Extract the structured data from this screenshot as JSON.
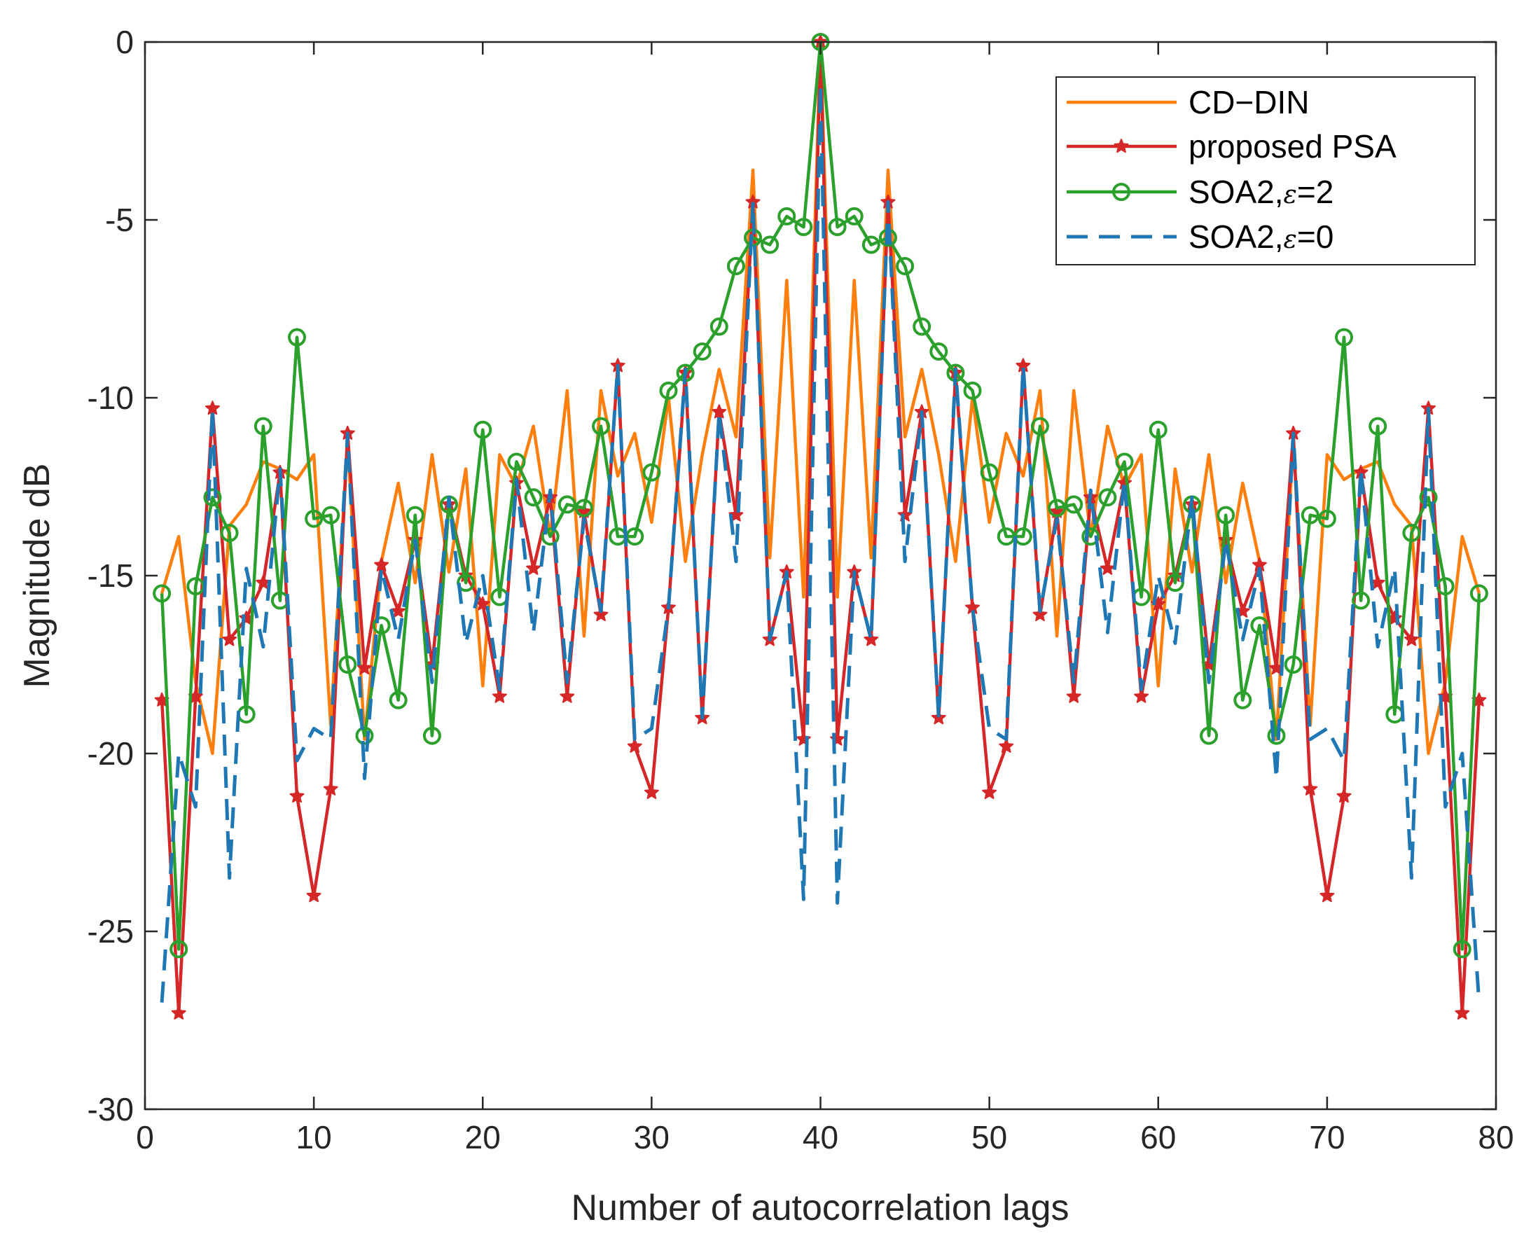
{
  "chart_data": {
    "type": "line",
    "title": "",
    "xlabel": "Number of autocorrelation lags",
    "ylabel": "Magnitude dB",
    "xlim": [
      0,
      80
    ],
    "ylim": [
      -30,
      0
    ],
    "xticks": [
      0,
      10,
      20,
      30,
      40,
      50,
      60,
      70,
      80
    ],
    "yticks": [
      0,
      -5,
      -10,
      -15,
      -20,
      -25,
      -30
    ],
    "grid": false,
    "legend_position": "top-right",
    "x": [
      1,
      2,
      3,
      4,
      5,
      6,
      7,
      8,
      9,
      10,
      11,
      12,
      13,
      14,
      15,
      16,
      17,
      18,
      19,
      20,
      21,
      22,
      23,
      24,
      25,
      26,
      27,
      28,
      29,
      30,
      31,
      32,
      33,
      34,
      35,
      36,
      37,
      38,
      39,
      40,
      41,
      42,
      43,
      44,
      45,
      46,
      47,
      48,
      49,
      50,
      51,
      52,
      53,
      54,
      55,
      56,
      57,
      58,
      59,
      60,
      61,
      62,
      63,
      64,
      65,
      66,
      67,
      68,
      69,
      70,
      71,
      72,
      73,
      74,
      75,
      76,
      77,
      78,
      79
    ],
    "series": [
      {
        "name": "CD−DIN",
        "legend_prefix": "CD−DIN",
        "legend_eps": "",
        "legend_suffix": "",
        "color": "#FF7F0E",
        "style": "solid",
        "marker": "none",
        "values": [
          -15.5,
          -13.9,
          -18.0,
          -20.0,
          -13.6,
          -13.0,
          -11.8,
          -12.0,
          -12.3,
          -11.6,
          -19.2,
          -11.2,
          -19.6,
          -14.6,
          -12.4,
          -15.2,
          -11.6,
          -14.9,
          -12.0,
          -18.1,
          -11.6,
          -12.5,
          -10.8,
          -13.9,
          -9.8,
          -16.7,
          -9.8,
          -12.2,
          -11.0,
          -13.5,
          -10.0,
          -14.6,
          -11.6,
          -9.2,
          -11.1,
          -3.6,
          -14.5,
          -6.7,
          -15.6,
          0.0,
          -15.6,
          -6.7,
          -14.5,
          -3.6,
          -11.1,
          -9.2,
          -11.6,
          -14.6,
          -10.0,
          -13.5,
          -11.0,
          -12.2,
          -9.8,
          -16.7,
          -9.8,
          -13.9,
          -10.8,
          -12.5,
          -11.6,
          -18.1,
          -12.0,
          -14.9,
          -11.6,
          -15.2,
          -12.4,
          -14.6,
          -19.6,
          -11.2,
          -19.2,
          -11.6,
          -12.3,
          -12.0,
          -11.8,
          -13.0,
          -13.6,
          -20.0,
          -18.0,
          -13.9,
          -15.5
        ]
      },
      {
        "name": "proposed PSA",
        "legend_prefix": "proposed PSA",
        "legend_eps": "",
        "legend_suffix": "",
        "color": "#D62728",
        "style": "solid",
        "marker": "star",
        "values": [
          -18.5,
          -27.3,
          -18.4,
          -10.3,
          -16.8,
          -16.2,
          -15.2,
          -12.1,
          -21.2,
          -24.0,
          -21.0,
          -11.0,
          -17.6,
          -14.7,
          -16.0,
          -14.0,
          -17.5,
          -13.0,
          -15.0,
          -15.8,
          -18.4,
          -12.4,
          -14.8,
          -12.8,
          -18.4,
          -13.2,
          -16.1,
          -9.1,
          -19.8,
          -21.1,
          -15.9,
          -9.3,
          -19.0,
          -10.4,
          -13.3,
          -4.5,
          -16.8,
          -14.9,
          -19.6,
          0.0,
          -19.6,
          -14.9,
          -16.8,
          -4.5,
          -13.3,
          -10.4,
          -19.0,
          -9.3,
          -15.9,
          -21.1,
          -19.8,
          -9.1,
          -16.1,
          -13.2,
          -18.4,
          -12.8,
          -14.8,
          -12.4,
          -18.4,
          -15.8,
          -15.0,
          -13.0,
          -17.5,
          -14.0,
          -16.0,
          -14.7,
          -17.6,
          -11.0,
          -21.0,
          -24.0,
          -21.2,
          -12.1,
          -15.2,
          -16.2,
          -16.8,
          -10.3,
          -18.4,
          -27.3,
          -18.5
        ]
      },
      {
        "name": "SOA2,ε=2",
        "legend_prefix": "SOA2,",
        "legend_eps": "ε",
        "legend_suffix": "=2",
        "color": "#2CA02C",
        "style": "solid",
        "marker": "circle",
        "values": [
          -15.5,
          -25.5,
          -15.3,
          -12.8,
          -13.8,
          -18.9,
          -10.8,
          -15.7,
          -8.3,
          -13.4,
          -13.3,
          -17.5,
          -19.5,
          -16.4,
          -18.5,
          -13.3,
          -19.5,
          -13.0,
          -15.2,
          -10.9,
          -15.6,
          -11.8,
          -12.8,
          -13.9,
          -13.0,
          -13.1,
          -10.8,
          -13.9,
          -13.9,
          -12.1,
          -9.8,
          -9.3,
          -8.7,
          -8.0,
          -6.3,
          -5.5,
          -5.7,
          -4.9,
          -5.2,
          0.0,
          -5.2,
          -4.9,
          -5.7,
          -5.5,
          -6.3,
          -8.0,
          -8.7,
          -9.3,
          -9.8,
          -12.1,
          -13.9,
          -13.9,
          -10.8,
          -13.1,
          -13.0,
          -13.9,
          -12.8,
          -11.8,
          -15.6,
          -10.9,
          -15.2,
          -13.0,
          -19.5,
          -13.3,
          -18.5,
          -16.4,
          -19.5,
          -17.5,
          -13.3,
          -13.4,
          -8.3,
          -15.7,
          -10.8,
          -18.9,
          -13.8,
          -12.8,
          -15.3,
          -25.5,
          -15.5
        ]
      },
      {
        "name": "SOA2,ε=0",
        "legend_prefix": "SOA2,",
        "legend_eps": "ε",
        "legend_suffix": "=0",
        "color": "#1F77B4",
        "style": "dashed",
        "marker": "none",
        "values": [
          -27.0,
          -20.0,
          -21.5,
          -10.3,
          -23.5,
          -14.8,
          -17.0,
          -12.0,
          -20.2,
          -19.3,
          -19.6,
          -11.0,
          -20.7,
          -14.8,
          -16.8,
          -14.0,
          -18.0,
          -12.8,
          -16.9,
          -15.0,
          -18.2,
          -12.3,
          -16.6,
          -12.6,
          -18.0,
          -13.4,
          -16.0,
          -9.1,
          -19.6,
          -19.3,
          -15.9,
          -9.2,
          -19.0,
          -10.4,
          -14.6,
          -4.5,
          -16.8,
          -14.9,
          -24.1,
          -1.2,
          -24.2,
          -14.9,
          -16.8,
          -4.5,
          -14.6,
          -10.4,
          -19.0,
          -9.2,
          -15.9,
          -19.3,
          -19.6,
          -9.1,
          -16.0,
          -13.4,
          -18.0,
          -12.6,
          -16.6,
          -12.3,
          -18.2,
          -15.0,
          -16.9,
          -12.8,
          -18.0,
          -14.0,
          -16.8,
          -14.8,
          -20.7,
          -11.0,
          -19.6,
          -19.3,
          -20.2,
          -12.0,
          -17.0,
          -14.8,
          -23.5,
          -10.3,
          -21.5,
          -20.0,
          -27.0
        ]
      }
    ]
  }
}
